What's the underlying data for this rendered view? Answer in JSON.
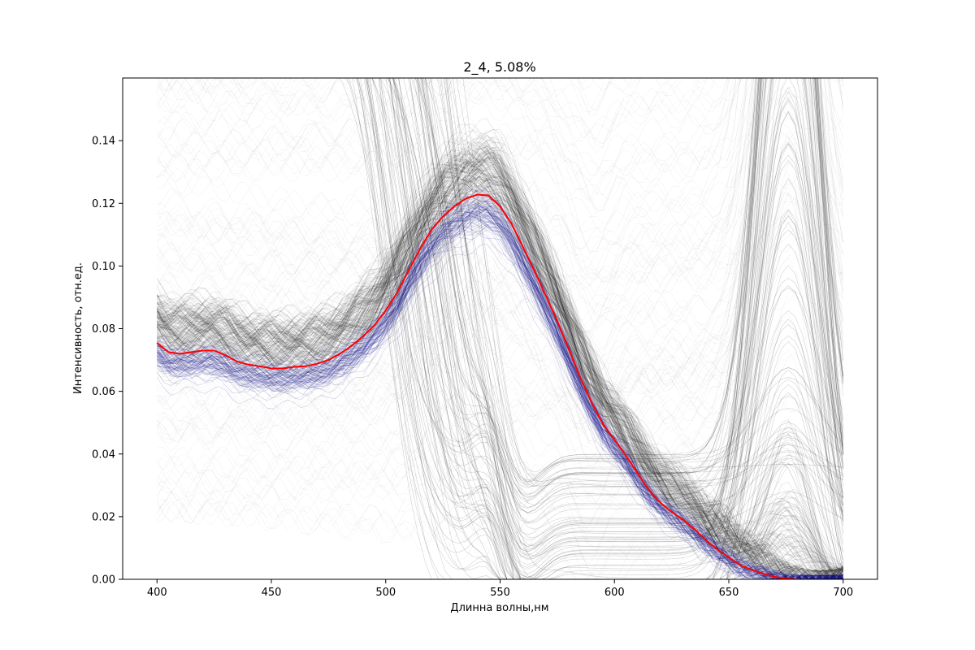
{
  "chart_data": {
    "type": "line",
    "title": "2_4, 5.08%",
    "xlabel": "Длинна волны,нм",
    "ylabel": "Интенсивность, отн.ед.",
    "xlim": [
      385,
      715
    ],
    "ylim": [
      0.0,
      0.16
    ],
    "x_ticks": [
      400,
      450,
      500,
      550,
      600,
      650,
      700
    ],
    "x_tick_labels": [
      "400",
      "450",
      "500",
      "550",
      "600",
      "650",
      "700"
    ],
    "y_ticks": [
      0.0,
      0.02,
      0.04,
      0.06,
      0.08,
      0.1,
      0.12,
      0.14
    ],
    "y_tick_labels": [
      "0.00",
      "0.02",
      "0.04",
      "0.06",
      "0.08",
      "0.10",
      "0.12",
      "0.14"
    ],
    "grid": false,
    "legend": "none",
    "colors": {
      "all_spectra": "#000000",
      "selected_spectra": "#00008b",
      "mean_spectrum": "#ff0000"
    },
    "series": [
      {
        "x": [
          400,
          405,
          410,
          415,
          420,
          425,
          430,
          435,
          440,
          445,
          450,
          455,
          460,
          465,
          470,
          475,
          480,
          485,
          490,
          495,
          500,
          505,
          510,
          515,
          520,
          525,
          530,
          535,
          540,
          545,
          550,
          555,
          560,
          565,
          570,
          575,
          580,
          585,
          590,
          595,
          600,
          605,
          610,
          615,
          620,
          625,
          630,
          635,
          640,
          645,
          650,
          655,
          660,
          665,
          670,
          675,
          680
        ],
        "values": [
          0.0755,
          0.0725,
          0.072,
          0.0725,
          0.073,
          0.073,
          0.0715,
          0.0695,
          0.0685,
          0.068,
          0.0673,
          0.0673,
          0.0678,
          0.068,
          0.0688,
          0.07,
          0.072,
          0.0745,
          0.0775,
          0.081,
          0.0858,
          0.0915,
          0.0985,
          0.1055,
          0.1115,
          0.1158,
          0.119,
          0.1215,
          0.1228,
          0.1225,
          0.119,
          0.1135,
          0.106,
          0.0985,
          0.0905,
          0.0825,
          0.0735,
          0.0645,
          0.0565,
          0.0495,
          0.0445,
          0.0395,
          0.034,
          0.0285,
          0.0245,
          0.0215,
          0.019,
          0.016,
          0.0125,
          0.0095,
          0.007,
          0.0045,
          0.003,
          0.0018,
          0.0008,
          0.0002,
          0.0
        ]
      }
    ]
  }
}
